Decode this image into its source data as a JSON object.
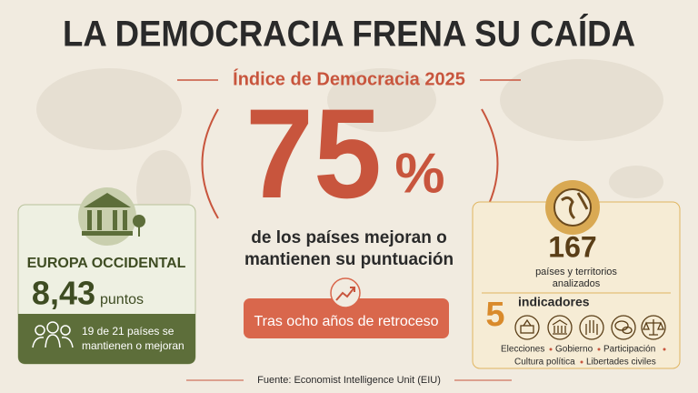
{
  "header": {
    "title": "LA DEMOCRACIA FRENA SU CAÍDA",
    "subtitle": "Índice de Democracia 2025"
  },
  "hero": {
    "number": "75",
    "unit": "%",
    "caption": [
      "de los países mejoran o",
      "mantienen su puntuación"
    ],
    "badge": "Tras ocho años de retroceso"
  },
  "left_card": {
    "region": "EUROPA OCCIDENTAL",
    "score": "8,43",
    "unit": "puntos",
    "note": [
      "19 de 21 países se",
      "mantienen o mejoran"
    ]
  },
  "right_card": {
    "count": "167",
    "count_label": [
      "países y territorios",
      "analizados"
    ],
    "indicator_count": "5",
    "indicator_label": "indicadores",
    "indicators": [
      "Elecciones",
      "Gobierno",
      "Participación",
      "Cultura política",
      "Libertades civiles"
    ]
  },
  "footer": {
    "source": "Fuente: Economist Intelligence Unit (EIU)"
  }
}
